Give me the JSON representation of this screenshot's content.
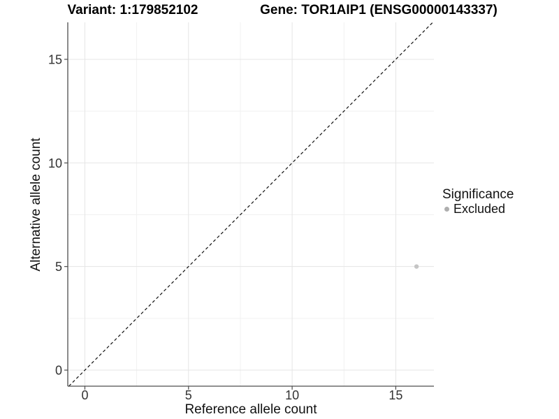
{
  "chart_data": {
    "type": "scatter",
    "title_left": "Variant: 1:179852102",
    "title_right": "Gene: TOR1AIP1 (ENSG00000143337)",
    "xlabel": "Reference allele count",
    "ylabel": "Alternative allele count",
    "xlim": [
      -0.825,
      16.84
    ],
    "ylim": [
      -0.775,
      16.785
    ],
    "x_major_ticks": [
      0,
      5,
      10,
      15
    ],
    "y_major_ticks": [
      0,
      5,
      10,
      15
    ],
    "x_minor_ticks": [
      2.5,
      7.5,
      12.5
    ],
    "y_minor_ticks": [
      2.5,
      7.5,
      12.5
    ],
    "grid": true,
    "legend_position": "right",
    "reference_line": {
      "equation": "y = x",
      "style": "dashed",
      "color": "#111111"
    },
    "series": [
      {
        "name": "Excluded",
        "color": "#c5c5c5",
        "points": [
          {
            "x": 16,
            "y": 5
          }
        ]
      }
    ]
  },
  "legend": {
    "title": "Significance",
    "items": [
      {
        "label": "Excluded",
        "color": "#aeaeae"
      }
    ]
  },
  "colors": {
    "background": "#ffffff",
    "axis_line": "#4d4d4d",
    "tick_mark": "#4d4d4d",
    "tick_label": "#333333",
    "grid_major": "#e5e5e5",
    "grid_minor": "#f1f1f1",
    "dashed_line": "#111111"
  }
}
